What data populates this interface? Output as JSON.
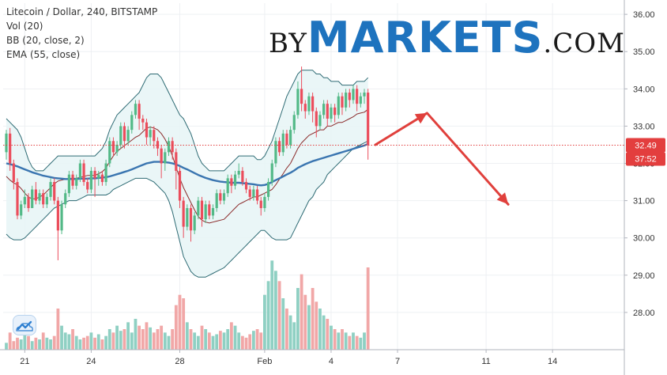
{
  "legend": {
    "title": "Litecoin / Dollar, 240, BITSTAMP",
    "vol": "Vol (20)",
    "bb": "BB (20, close, 2)",
    "ema": "EMA (55, close)"
  },
  "watermark": {
    "by": "BY",
    "markets": "MARKETS",
    "com": ".COM"
  },
  "tv_logo_icon": "tradingview-cloud-icon",
  "colors": {
    "up": "#53b987",
    "down": "#eb4d5c",
    "vol_up": "#8fd0c3",
    "vol_down": "#f1a7a7",
    "bb_fill": "#e6f4f6",
    "bb_band": "#2e6b74",
    "basis": "#8b2b2b",
    "ema": "#3a75b0",
    "arrow": "#e0403c",
    "price_badge": "#e33e3e"
  },
  "chart_data": {
    "type": "candlestick",
    "title": "Litecoin / Dollar, 240, BITSTAMP",
    "ylim": [
      27,
      36.3
    ],
    "y_ticks": [
      "28.00",
      "29.00",
      "30.00",
      "31.00",
      "32.00",
      "33.00",
      "34.00",
      "35.00",
      "36.00"
    ],
    "x_ticks": [
      {
        "label": "21",
        "index": 5
      },
      {
        "label": "24",
        "index": 23
      },
      {
        "label": "28",
        "index": 47
      },
      {
        "label": "Feb",
        "index": 70
      },
      {
        "label": "4",
        "index": 88
      },
      {
        "label": "7",
        "index": 106
      },
      {
        "label": "11",
        "index": 130
      },
      {
        "label": "14",
        "index": 148
      }
    ],
    "candles": [
      [
        32.3,
        32.8,
        32.9,
        32.1
      ],
      [
        32.8,
        32.0,
        32.95,
        31.8
      ],
      [
        32.0,
        31.5,
        32.1,
        31.3
      ],
      [
        31.5,
        30.6,
        31.6,
        30.5
      ],
      [
        30.6,
        30.9,
        31.0,
        30.5
      ],
      [
        30.9,
        31.1,
        31.3,
        30.8
      ],
      [
        31.1,
        30.8,
        31.2,
        30.7
      ],
      [
        30.8,
        31.3,
        31.4,
        30.8
      ],
      [
        31.3,
        31.0,
        31.5,
        30.9
      ],
      [
        31.0,
        31.2,
        31.3,
        30.9
      ],
      [
        31.2,
        30.9,
        31.3,
        30.8
      ],
      [
        30.9,
        31.1,
        31.2,
        30.8
      ],
      [
        31.1,
        31.5,
        31.6,
        31.0
      ],
      [
        31.5,
        31.0,
        31.6,
        30.9
      ],
      [
        31.0,
        30.2,
        31.1,
        29.4
      ],
      [
        30.2,
        30.9,
        31.0,
        30.1
      ],
      [
        30.9,
        31.2,
        31.3,
        30.8
      ],
      [
        31.2,
        31.7,
        31.8,
        31.1
      ],
      [
        31.7,
        31.4,
        31.8,
        31.3
      ],
      [
        31.4,
        31.6,
        31.7,
        31.3
      ],
      [
        31.6,
        32.0,
        32.1,
        31.5
      ],
      [
        32.0,
        31.5,
        32.1,
        31.4
      ],
      [
        31.5,
        31.3,
        31.6,
        31.2
      ],
      [
        31.3,
        31.8,
        31.9,
        31.2
      ],
      [
        31.8,
        31.6,
        31.9,
        31.1
      ],
      [
        31.6,
        31.7,
        31.8,
        31.4
      ],
      [
        31.7,
        31.5,
        31.8,
        31.4
      ],
      [
        31.5,
        32.0,
        32.1,
        31.4
      ],
      [
        32.0,
        32.6,
        32.7,
        31.9
      ],
      [
        32.6,
        32.3,
        32.7,
        32.2
      ],
      [
        32.3,
        32.5,
        32.6,
        32.2
      ],
      [
        32.5,
        33.0,
        33.1,
        32.4
      ],
      [
        33.0,
        32.6,
        33.1,
        32.4
      ],
      [
        32.6,
        32.9,
        33.0,
        32.5
      ],
      [
        32.9,
        33.3,
        33.4,
        32.8
      ],
      [
        33.3,
        33.6,
        33.7,
        33.2
      ],
      [
        33.6,
        33.2,
        33.7,
        32.9
      ],
      [
        33.2,
        33.1,
        33.3,
        32.9
      ],
      [
        33.1,
        32.7,
        33.2,
        32.5
      ],
      [
        32.7,
        32.9,
        33.0,
        32.5
      ],
      [
        32.9,
        32.6,
        33.0,
        32.4
      ],
      [
        32.6,
        32.4,
        32.7,
        32.2
      ],
      [
        32.4,
        32.0,
        32.5,
        31.6
      ],
      [
        32.0,
        32.3,
        32.4,
        31.8
      ],
      [
        32.3,
        32.6,
        32.7,
        32.2
      ],
      [
        32.6,
        32.3,
        32.7,
        32.1
      ],
      [
        32.3,
        31.8,
        32.4,
        31.3
      ],
      [
        31.8,
        31.0,
        31.9,
        30.8
      ],
      [
        31.0,
        30.3,
        31.1,
        30.0
      ],
      [
        30.3,
        30.8,
        30.9,
        30.2
      ],
      [
        30.8,
        30.2,
        30.9,
        29.9
      ],
      [
        30.2,
        30.6,
        30.7,
        30.1
      ],
      [
        30.6,
        31.0,
        31.1,
        30.5
      ],
      [
        31.0,
        30.5,
        31.1,
        30.3
      ],
      [
        30.5,
        30.9,
        31.0,
        30.4
      ],
      [
        30.9,
        30.6,
        31.0,
        30.5
      ],
      [
        30.6,
        30.8,
        30.9,
        30.5
      ],
      [
        30.8,
        31.2,
        31.3,
        30.7
      ],
      [
        31.2,
        31.0,
        31.3,
        30.9
      ],
      [
        31.0,
        31.2,
        31.3,
        30.9
      ],
      [
        31.2,
        31.6,
        31.7,
        31.1
      ],
      [
        31.6,
        31.4,
        31.7,
        31.2
      ],
      [
        31.4,
        31.7,
        31.8,
        31.3
      ],
      [
        31.7,
        31.8,
        32.0,
        31.6
      ],
      [
        31.8,
        31.5,
        31.9,
        31.4
      ],
      [
        31.5,
        31.3,
        31.6,
        31.2
      ],
      [
        31.3,
        31.1,
        31.4,
        31.0
      ],
      [
        31.1,
        31.3,
        31.4,
        31.0
      ],
      [
        31.3,
        31.0,
        31.4,
        30.9
      ],
      [
        31.0,
        30.8,
        31.1,
        30.6
      ],
      [
        30.8,
        31.1,
        31.2,
        30.7
      ],
      [
        31.1,
        31.5,
        31.6,
        31.0
      ],
      [
        31.5,
        32.0,
        32.1,
        31.4
      ],
      [
        32.0,
        32.6,
        32.7,
        31.9
      ],
      [
        32.6,
        32.3,
        32.7,
        32.2
      ],
      [
        32.3,
        32.8,
        32.9,
        32.2
      ],
      [
        32.8,
        32.5,
        32.9,
        32.4
      ],
      [
        32.5,
        32.9,
        33.0,
        32.4
      ],
      [
        32.9,
        33.3,
        33.4,
        32.8
      ],
      [
        33.3,
        34.0,
        34.2,
        33.2
      ],
      [
        34.0,
        33.6,
        34.6,
        33.4
      ],
      [
        33.6,
        33.4,
        33.7,
        33.2
      ],
      [
        33.4,
        33.8,
        33.9,
        33.3
      ],
      [
        33.8,
        33.4,
        33.9,
        33.1
      ],
      [
        33.4,
        33.0,
        33.5,
        32.7
      ],
      [
        33.0,
        33.3,
        33.4,
        32.9
      ],
      [
        33.3,
        33.6,
        33.7,
        33.2
      ],
      [
        33.6,
        33.2,
        33.7,
        33.0
      ],
      [
        33.2,
        33.5,
        33.6,
        33.1
      ],
      [
        33.5,
        33.3,
        33.6,
        33.1
      ],
      [
        33.3,
        33.8,
        33.9,
        33.2
      ],
      [
        33.8,
        33.5,
        33.9,
        33.3
      ],
      [
        33.5,
        33.9,
        34.0,
        33.4
      ],
      [
        33.9,
        33.7,
        34.0,
        33.5
      ],
      [
        33.7,
        34.0,
        34.1,
        33.6
      ],
      [
        34.0,
        33.6,
        34.1,
        33.4
      ],
      [
        33.6,
        33.8,
        33.9,
        33.5
      ],
      [
        33.8,
        33.9,
        34.0,
        33.6
      ],
      [
        33.9,
        32.5,
        34.0,
        32.1
      ]
    ],
    "volume": [
      0.2,
      0.5,
      0.25,
      0.35,
      0.3,
      0.6,
      0.4,
      0.25,
      0.35,
      0.3,
      0.5,
      0.35,
      0.3,
      0.4,
      1.2,
      0.7,
      0.5,
      0.45,
      0.6,
      0.4,
      0.3,
      0.35,
      0.4,
      0.5,
      0.35,
      0.45,
      0.3,
      0.4,
      0.6,
      0.5,
      0.7,
      0.55,
      0.6,
      0.8,
      0.5,
      0.9,
      0.7,
      0.6,
      0.8,
      0.65,
      0.5,
      0.6,
      0.7,
      0.5,
      0.4,
      0.6,
      1.3,
      1.6,
      1.5,
      0.8,
      0.6,
      0.5,
      0.4,
      0.7,
      0.6,
      0.5,
      0.4,
      0.45,
      0.55,
      0.5,
      0.6,
      0.8,
      0.7,
      0.5,
      0.4,
      0.35,
      0.45,
      0.55,
      0.6,
      0.5,
      1.6,
      2.0,
      2.6,
      2.3,
      2.0,
      1.5,
      1.2,
      1.0,
      0.8,
      1.8,
      2.2,
      1.6,
      1.3,
      1.8,
      1.4,
      1.2,
      1.0,
      0.9,
      0.7,
      0.6,
      0.5,
      0.6,
      0.5,
      0.4,
      0.5,
      0.4,
      0.35,
      0.5,
      2.4
    ],
    "volume_max_plot": 3.0,
    "bb": {
      "upper": [
        33.2,
        33.1,
        33.0,
        32.9,
        32.7,
        32.4,
        32.1,
        31.9,
        31.8,
        31.8,
        31.8,
        31.9,
        32.0,
        32.1,
        32.2,
        32.2,
        32.2,
        32.2,
        32.2,
        32.2,
        32.2,
        32.2,
        32.2,
        32.2,
        32.2,
        32.3,
        32.4,
        32.6,
        32.9,
        33.1,
        33.3,
        33.4,
        33.5,
        33.6,
        33.7,
        33.8,
        33.9,
        34.1,
        34.3,
        34.4,
        34.4,
        34.4,
        34.3,
        34.1,
        33.9,
        33.7,
        33.5,
        33.3,
        33.2,
        33.0,
        32.8,
        32.5,
        32.2,
        32.0,
        31.9,
        31.8,
        31.8,
        31.8,
        31.8,
        31.8,
        31.9,
        32.0,
        32.1,
        32.2,
        32.2,
        32.2,
        32.2,
        32.2,
        32.1,
        32.1,
        32.2,
        32.4,
        32.6,
        32.9,
        33.2,
        33.5,
        33.8,
        34.0,
        34.2,
        34.4,
        34.5,
        34.5,
        34.5,
        34.5,
        34.4,
        34.4,
        34.3,
        34.3,
        34.2,
        34.2,
        34.2,
        34.1,
        34.1,
        34.1,
        34.1,
        34.2,
        34.2,
        34.2,
        34.3
      ],
      "lower": [
        30.1,
        30.0,
        29.95,
        29.95,
        29.95,
        30.0,
        30.1,
        30.2,
        30.3,
        30.4,
        30.5,
        30.6,
        30.7,
        30.8,
        30.85,
        30.9,
        30.95,
        31.0,
        31.0,
        31.0,
        31.05,
        31.1,
        31.15,
        31.15,
        31.15,
        31.15,
        31.15,
        31.15,
        31.2,
        31.3,
        31.35,
        31.4,
        31.45,
        31.5,
        31.55,
        31.6,
        31.6,
        31.6,
        31.6,
        31.55,
        31.5,
        31.4,
        31.3,
        31.2,
        31.0,
        30.7,
        30.3,
        29.9,
        29.5,
        29.3,
        29.1,
        29.0,
        28.95,
        28.95,
        28.95,
        29.0,
        29.05,
        29.1,
        29.15,
        29.2,
        29.3,
        29.4,
        29.5,
        29.6,
        29.7,
        29.8,
        29.9,
        30.0,
        30.1,
        30.2,
        30.2,
        30.1,
        30.0,
        29.95,
        29.95,
        29.95,
        29.95,
        30.0,
        30.2,
        30.4,
        30.6,
        30.8,
        31.0,
        31.1,
        31.3,
        31.4,
        31.5,
        31.7,
        31.8,
        31.9,
        32.0,
        32.1,
        32.2,
        32.3,
        32.4,
        32.45,
        32.5,
        32.55,
        32.6
      ]
    },
    "ema55": [
      32.0,
      31.98,
      31.95,
      31.92,
      31.88,
      31.84,
      31.8,
      31.76,
      31.73,
      31.7,
      31.67,
      31.65,
      31.63,
      31.61,
      31.6,
      31.59,
      31.58,
      31.58,
      31.58,
      31.58,
      31.59,
      31.59,
      31.59,
      31.6,
      31.6,
      31.61,
      31.62,
      31.63,
      31.65,
      31.68,
      31.71,
      31.74,
      31.77,
      31.8,
      31.84,
      31.88,
      31.92,
      31.96,
      32.0,
      32.02,
      32.04,
      32.04,
      32.04,
      32.03,
      32.02,
      32.0,
      31.97,
      31.93,
      31.88,
      31.84,
      31.79,
      31.74,
      31.69,
      31.65,
      31.61,
      31.58,
      31.55,
      31.53,
      31.51,
      31.5,
      31.49,
      31.48,
      31.48,
      31.48,
      31.47,
      31.46,
      31.45,
      31.44,
      31.42,
      31.41,
      31.42,
      31.45,
      31.5,
      31.55,
      31.6,
      31.65,
      31.7,
      31.75,
      31.81,
      31.88,
      31.93,
      31.98,
      32.02,
      32.06,
      32.09,
      32.12,
      32.15,
      32.18,
      32.21,
      32.24,
      32.27,
      32.3,
      32.33,
      32.36,
      32.39,
      32.42,
      32.45,
      32.48,
      32.52
    ],
    "current_price": "32.49",
    "countdown": "37:52",
    "forecast_arrow": [
      {
        "index": 100,
        "price": 32.5
      },
      {
        "index": 114,
        "price": 33.35
      },
      {
        "index": 136,
        "price": 30.9
      }
    ]
  }
}
